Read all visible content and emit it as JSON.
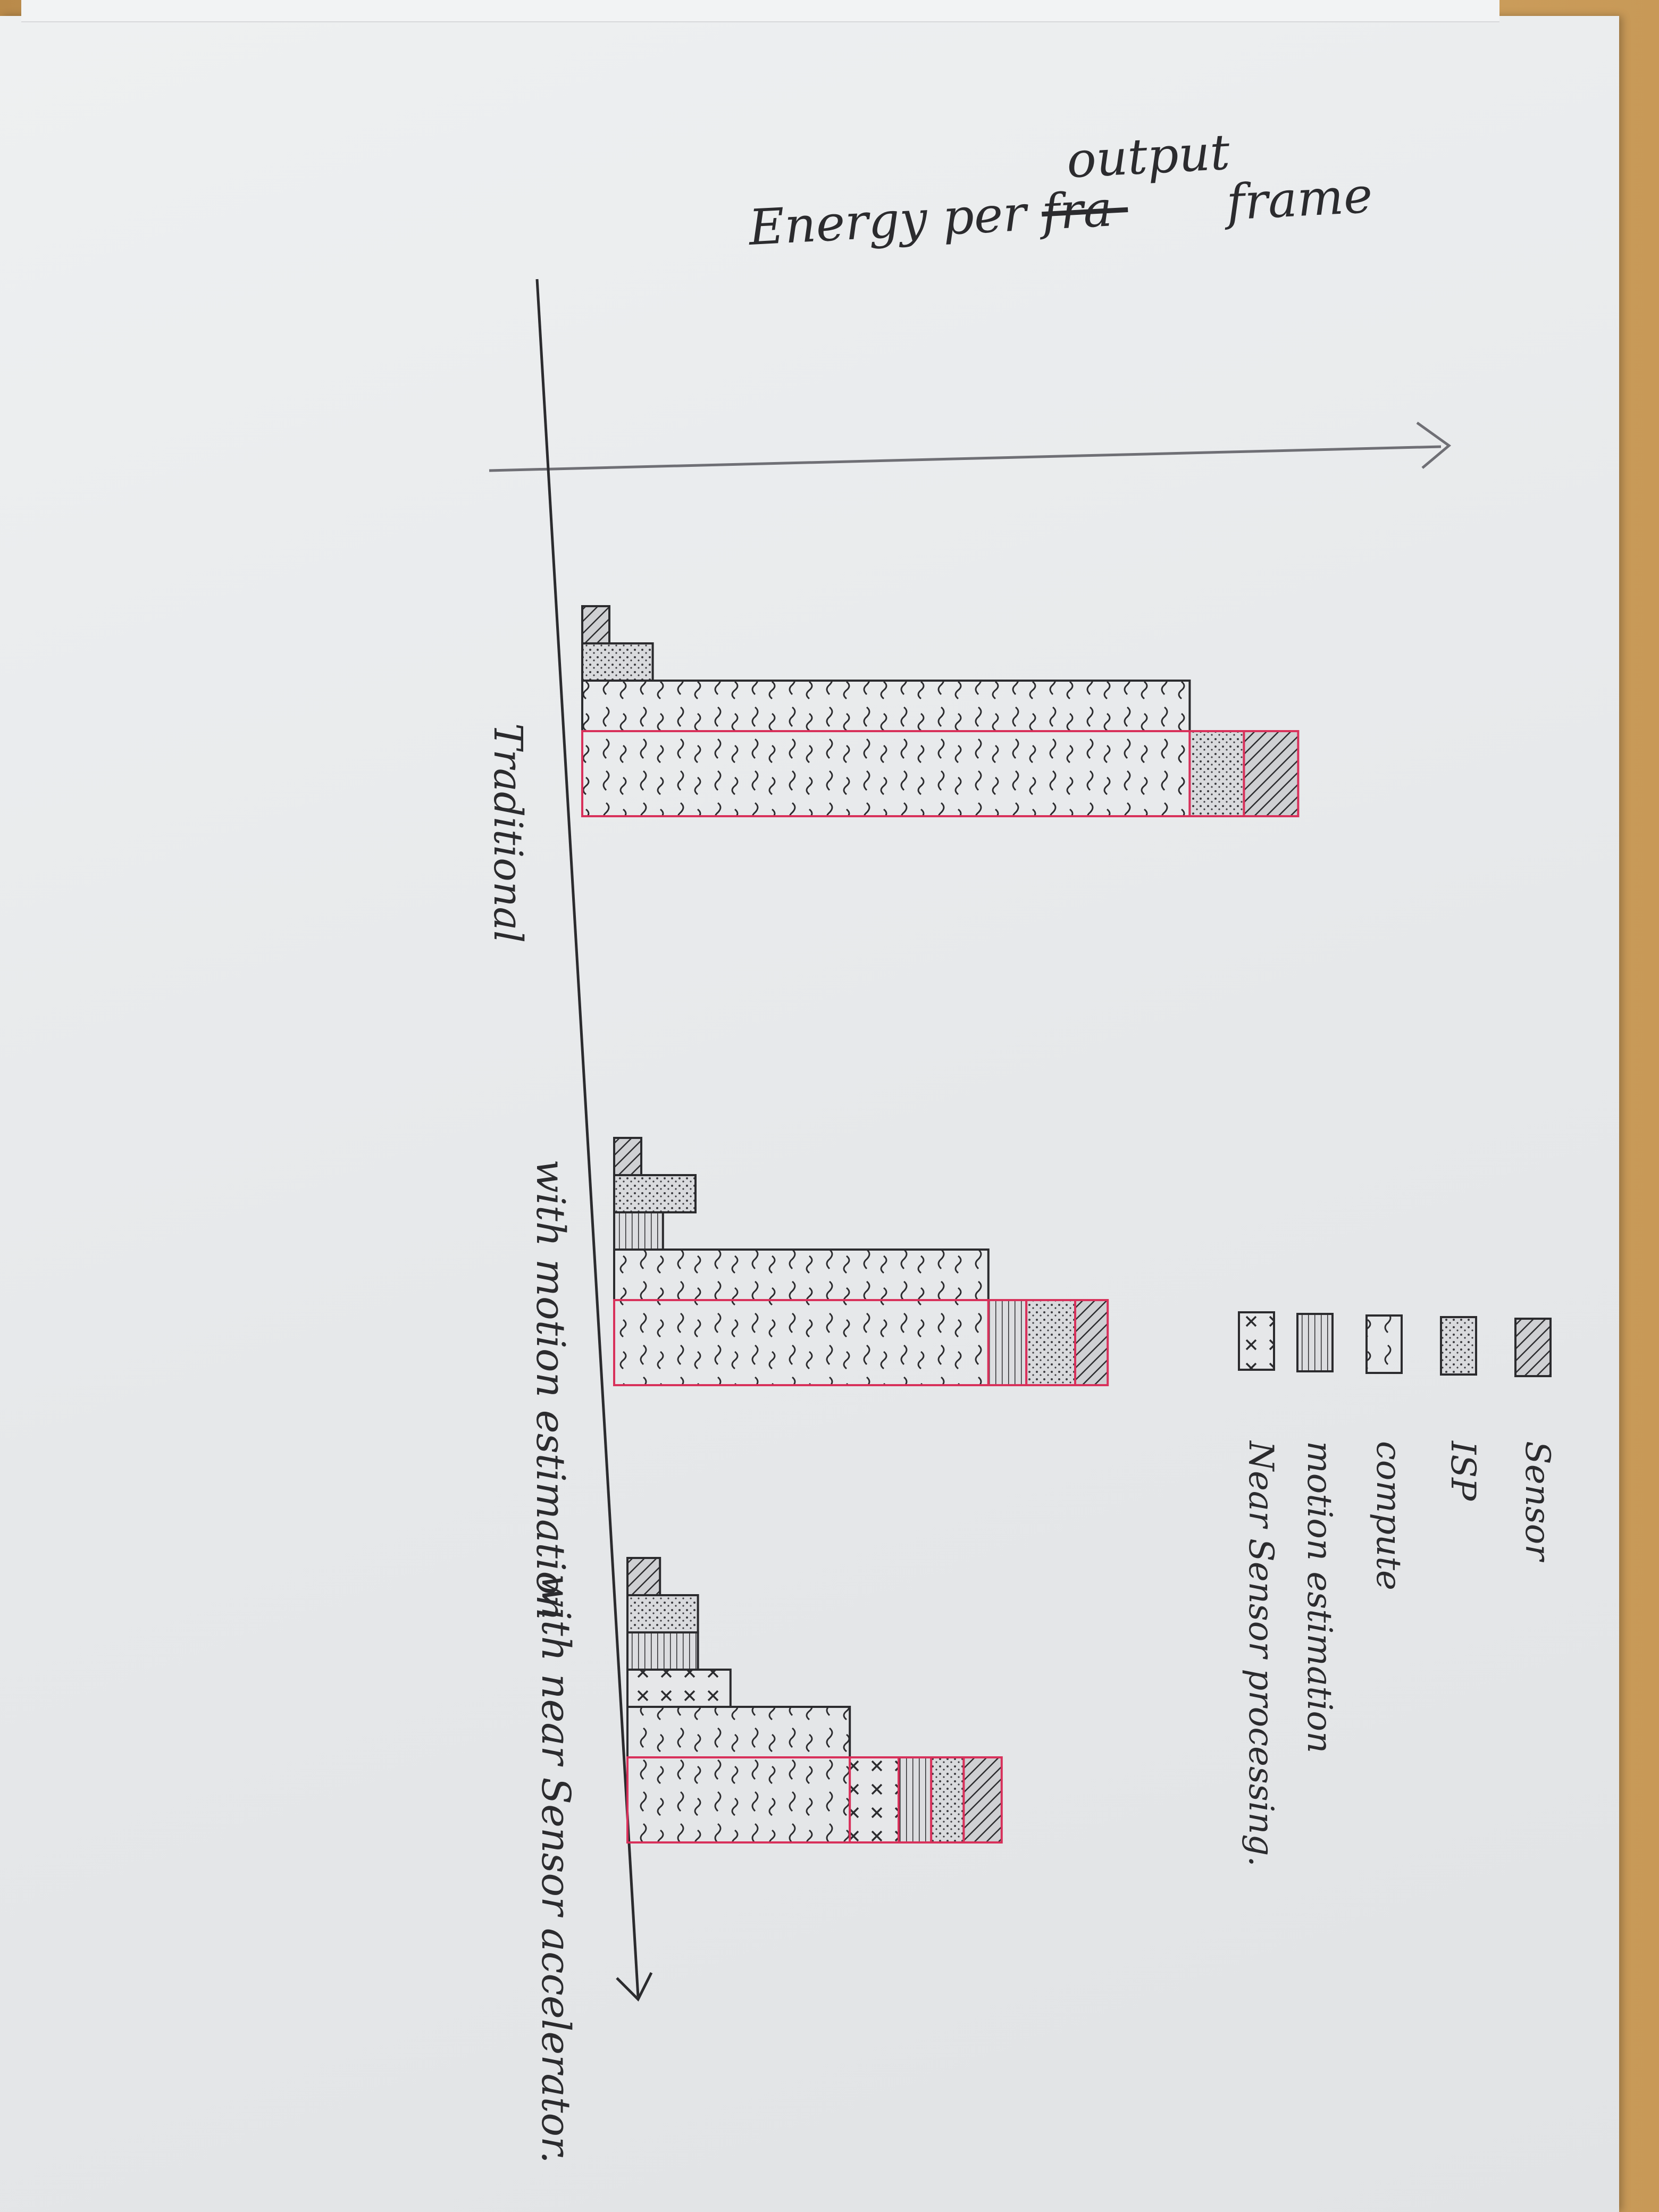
{
  "chart_data": {
    "type": "bar",
    "orientation": "horizontal-stacked-grouped",
    "title": "Energy per output frame",
    "title_strikethrough": "fra",
    "groups": [
      {
        "label": "Traditional",
        "bars": [
          {
            "component": "sensor",
            "value": 0.5
          },
          {
            "component": "ISP",
            "value": 1.3
          },
          {
            "component": "compute",
            "value": 11.2
          },
          {
            "component": "total",
            "stack": [
              {
                "component": "compute",
                "value": 11.2
              },
              {
                "component": "ISP",
                "value": 1.0
              },
              {
                "component": "sensor",
                "value": 1.0
              }
            ]
          }
        ]
      },
      {
        "label": "with motion estimation",
        "bars": [
          {
            "component": "sensor",
            "value": 0.5
          },
          {
            "component": "ISP",
            "value": 1.5
          },
          {
            "component": "motion estimation",
            "value": 0.9
          },
          {
            "component": "compute",
            "value": 6.9
          },
          {
            "component": "total",
            "stack": [
              {
                "component": "compute",
                "value": 6.9
              },
              {
                "component": "motion estimation",
                "value": 0.7
              },
              {
                "component": "ISP",
                "value": 0.9
              },
              {
                "component": "sensor",
                "value": 0.6
              }
            ]
          }
        ]
      },
      {
        "label": "with near Sensor accelerator.",
        "bars": [
          {
            "component": "sensor",
            "value": 0.6
          },
          {
            "component": "ISP",
            "value": 1.3
          },
          {
            "component": "motion estimation",
            "value": 1.3
          },
          {
            "component": "Near sensor processing",
            "value": 1.9
          },
          {
            "component": "compute",
            "value": 4.1
          },
          {
            "component": "total",
            "stack": [
              {
                "component": "compute",
                "value": 4.1
              },
              {
                "component": "Near sensor processing",
                "value": 0.9
              },
              {
                "component": "motion estimation",
                "value": 0.6
              },
              {
                "component": "ISP",
                "value": 0.6
              },
              {
                "component": "sensor",
                "value": 0.7
              }
            ]
          }
        ]
      }
    ],
    "legend": [
      {
        "key": "sensor",
        "label": "Sensor",
        "pattern": "diagonal-hatch"
      },
      {
        "key": "ISP",
        "label": "ISP",
        "pattern": "dots"
      },
      {
        "key": "compute",
        "label": "compute",
        "pattern": "squiggles"
      },
      {
        "key": "motion estimation",
        "label": "motion estimation",
        "pattern": "horizontal-lines"
      },
      {
        "key": "Near sensor processing",
        "label": "Near Sensor processing.",
        "pattern": "crosses"
      }
    ],
    "legend_position": "right",
    "value_axis": "unlabeled",
    "grid": false
  },
  "colors": {
    "ink": "#2b2b2e",
    "pencil": "#6f6f75",
    "red_outline": "#d8315b",
    "paper": "#e9ebec"
  }
}
